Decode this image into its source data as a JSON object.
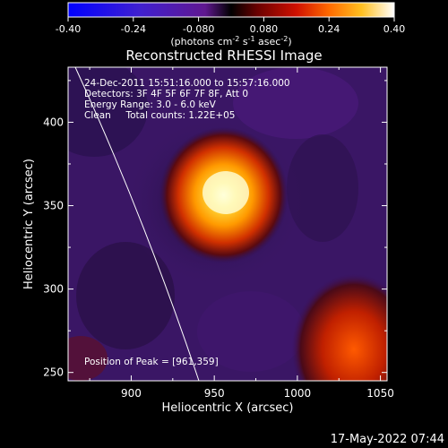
{
  "colorbar": {
    "ticks": [
      "-0.40",
      "-0.24",
      "-0.080",
      "0.080",
      "0.24",
      "0.40"
    ],
    "unit_main": "(photons cm",
    "unit_sup1": "-2",
    "unit_mid": " s",
    "unit_sup2": "-1",
    "unit_mid2": " asec",
    "unit_sup3": "-2",
    "unit_end": ")",
    "range": [
      -0.4,
      0.4
    ]
  },
  "chart_data": {
    "type": "heatmap",
    "title": "Reconstructed RHESSI Image",
    "xlabel": "Heliocentric X (arcsec)",
    "ylabel": "Heliocentric Y (arcsec)",
    "x_ticks": [
      900,
      950,
      1000,
      1050
    ],
    "y_ticks": [
      250,
      300,
      350,
      400
    ],
    "xlim": [
      862,
      1054
    ],
    "ylim": [
      245,
      433
    ],
    "peak": {
      "x": 961,
      "y": 359
    },
    "annotations": [
      "24-Dec-2011 15:51:16.000 to 15:57:16.000",
      "Detectors: 3F 4F 5F 6F 7F 8F, Att 0",
      "Energy Range: 3.0 - 6.0 keV",
      "Clean     Total counts: 1.22E+05"
    ],
    "peak_label": "Position of Peak = [961,359]"
  },
  "timestamp": "17-May-2022 07:44"
}
